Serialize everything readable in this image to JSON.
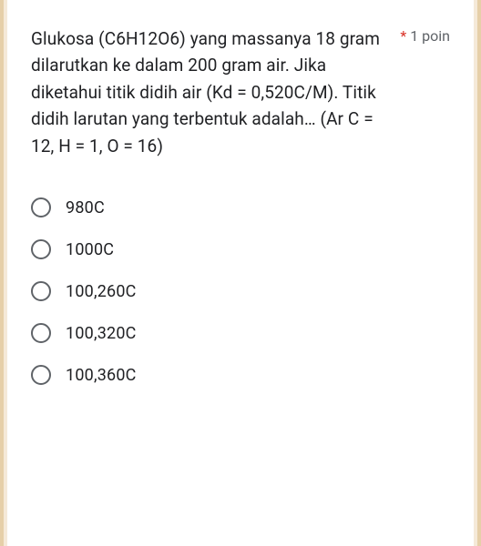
{
  "colors": {
    "page_bg": "#f5e9d8",
    "edge_bg": "#e6cfa8",
    "card_bg": "#ffffff",
    "text": "#202124",
    "muted": "#5f6368",
    "required": "#d93025",
    "radio_border": "#5f6368"
  },
  "typography": {
    "question_fontsize": 19,
    "option_fontsize": 18,
    "points_fontsize": 16,
    "line_height": 1.55
  },
  "question": {
    "text": "Glukosa (C6H12O6) yang massanya 18 gram dilarutkan ke dalam 200 gram air. Jika diketahui titik didih air (Kd  = 0,520C/M).  Titik didih larutan yang terbentuk adalah… (Ar C = 12, H = 1, O = 16)",
    "required_marker": "*",
    "points_label": "1 poin"
  },
  "options": [
    {
      "label": "980C"
    },
    {
      "label": "1000C"
    },
    {
      "label": "100,260C"
    },
    {
      "label": "100,320C"
    },
    {
      "label": "100,360C"
    }
  ]
}
